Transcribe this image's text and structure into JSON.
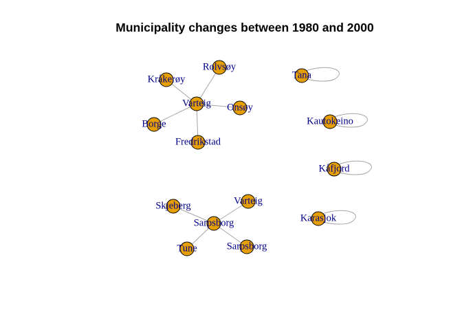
{
  "title": "Municipality changes between 1980 and 2000",
  "colors": {
    "vertex": "#E69F00",
    "vertex_border": "#000000",
    "edge": "#a6a6a6",
    "label": "#00008B"
  },
  "nodes": [
    {
      "id": "n1",
      "label": "Kråkerøy"
    },
    {
      "id": "n2",
      "label": "Rolvsøy"
    },
    {
      "id": "n3",
      "label": "Varteig"
    },
    {
      "id": "n4",
      "label": "Onsøy"
    },
    {
      "id": "n5",
      "label": "Borge"
    },
    {
      "id": "n6",
      "label": "Fredrikstad"
    },
    {
      "id": "n7",
      "label": "Tana"
    },
    {
      "id": "n8",
      "label": "Kautokeino"
    },
    {
      "id": "n9",
      "label": "Kåfjord"
    },
    {
      "id": "n10",
      "label": "Varteig"
    },
    {
      "id": "n11",
      "label": "Skjeberg"
    },
    {
      "id": "n12",
      "label": "Sarpsborg"
    },
    {
      "id": "n13",
      "label": "Karasjok"
    },
    {
      "id": "n14",
      "label": "Tune"
    },
    {
      "id": "n15",
      "label": "Sarpsborg"
    }
  ],
  "edges": [
    {
      "from": "n1",
      "to": "n3"
    },
    {
      "from": "n2",
      "to": "n3"
    },
    {
      "from": "n4",
      "to": "n3"
    },
    {
      "from": "n5",
      "to": "n3"
    },
    {
      "from": "n6",
      "to": "n3"
    },
    {
      "from": "n11",
      "to": "n12"
    },
    {
      "from": "n10",
      "to": "n12"
    },
    {
      "from": "n14",
      "to": "n12"
    },
    {
      "from": "n15",
      "to": "n12"
    }
  ],
  "loops": [
    "n7",
    "n8",
    "n9",
    "n13"
  ]
}
